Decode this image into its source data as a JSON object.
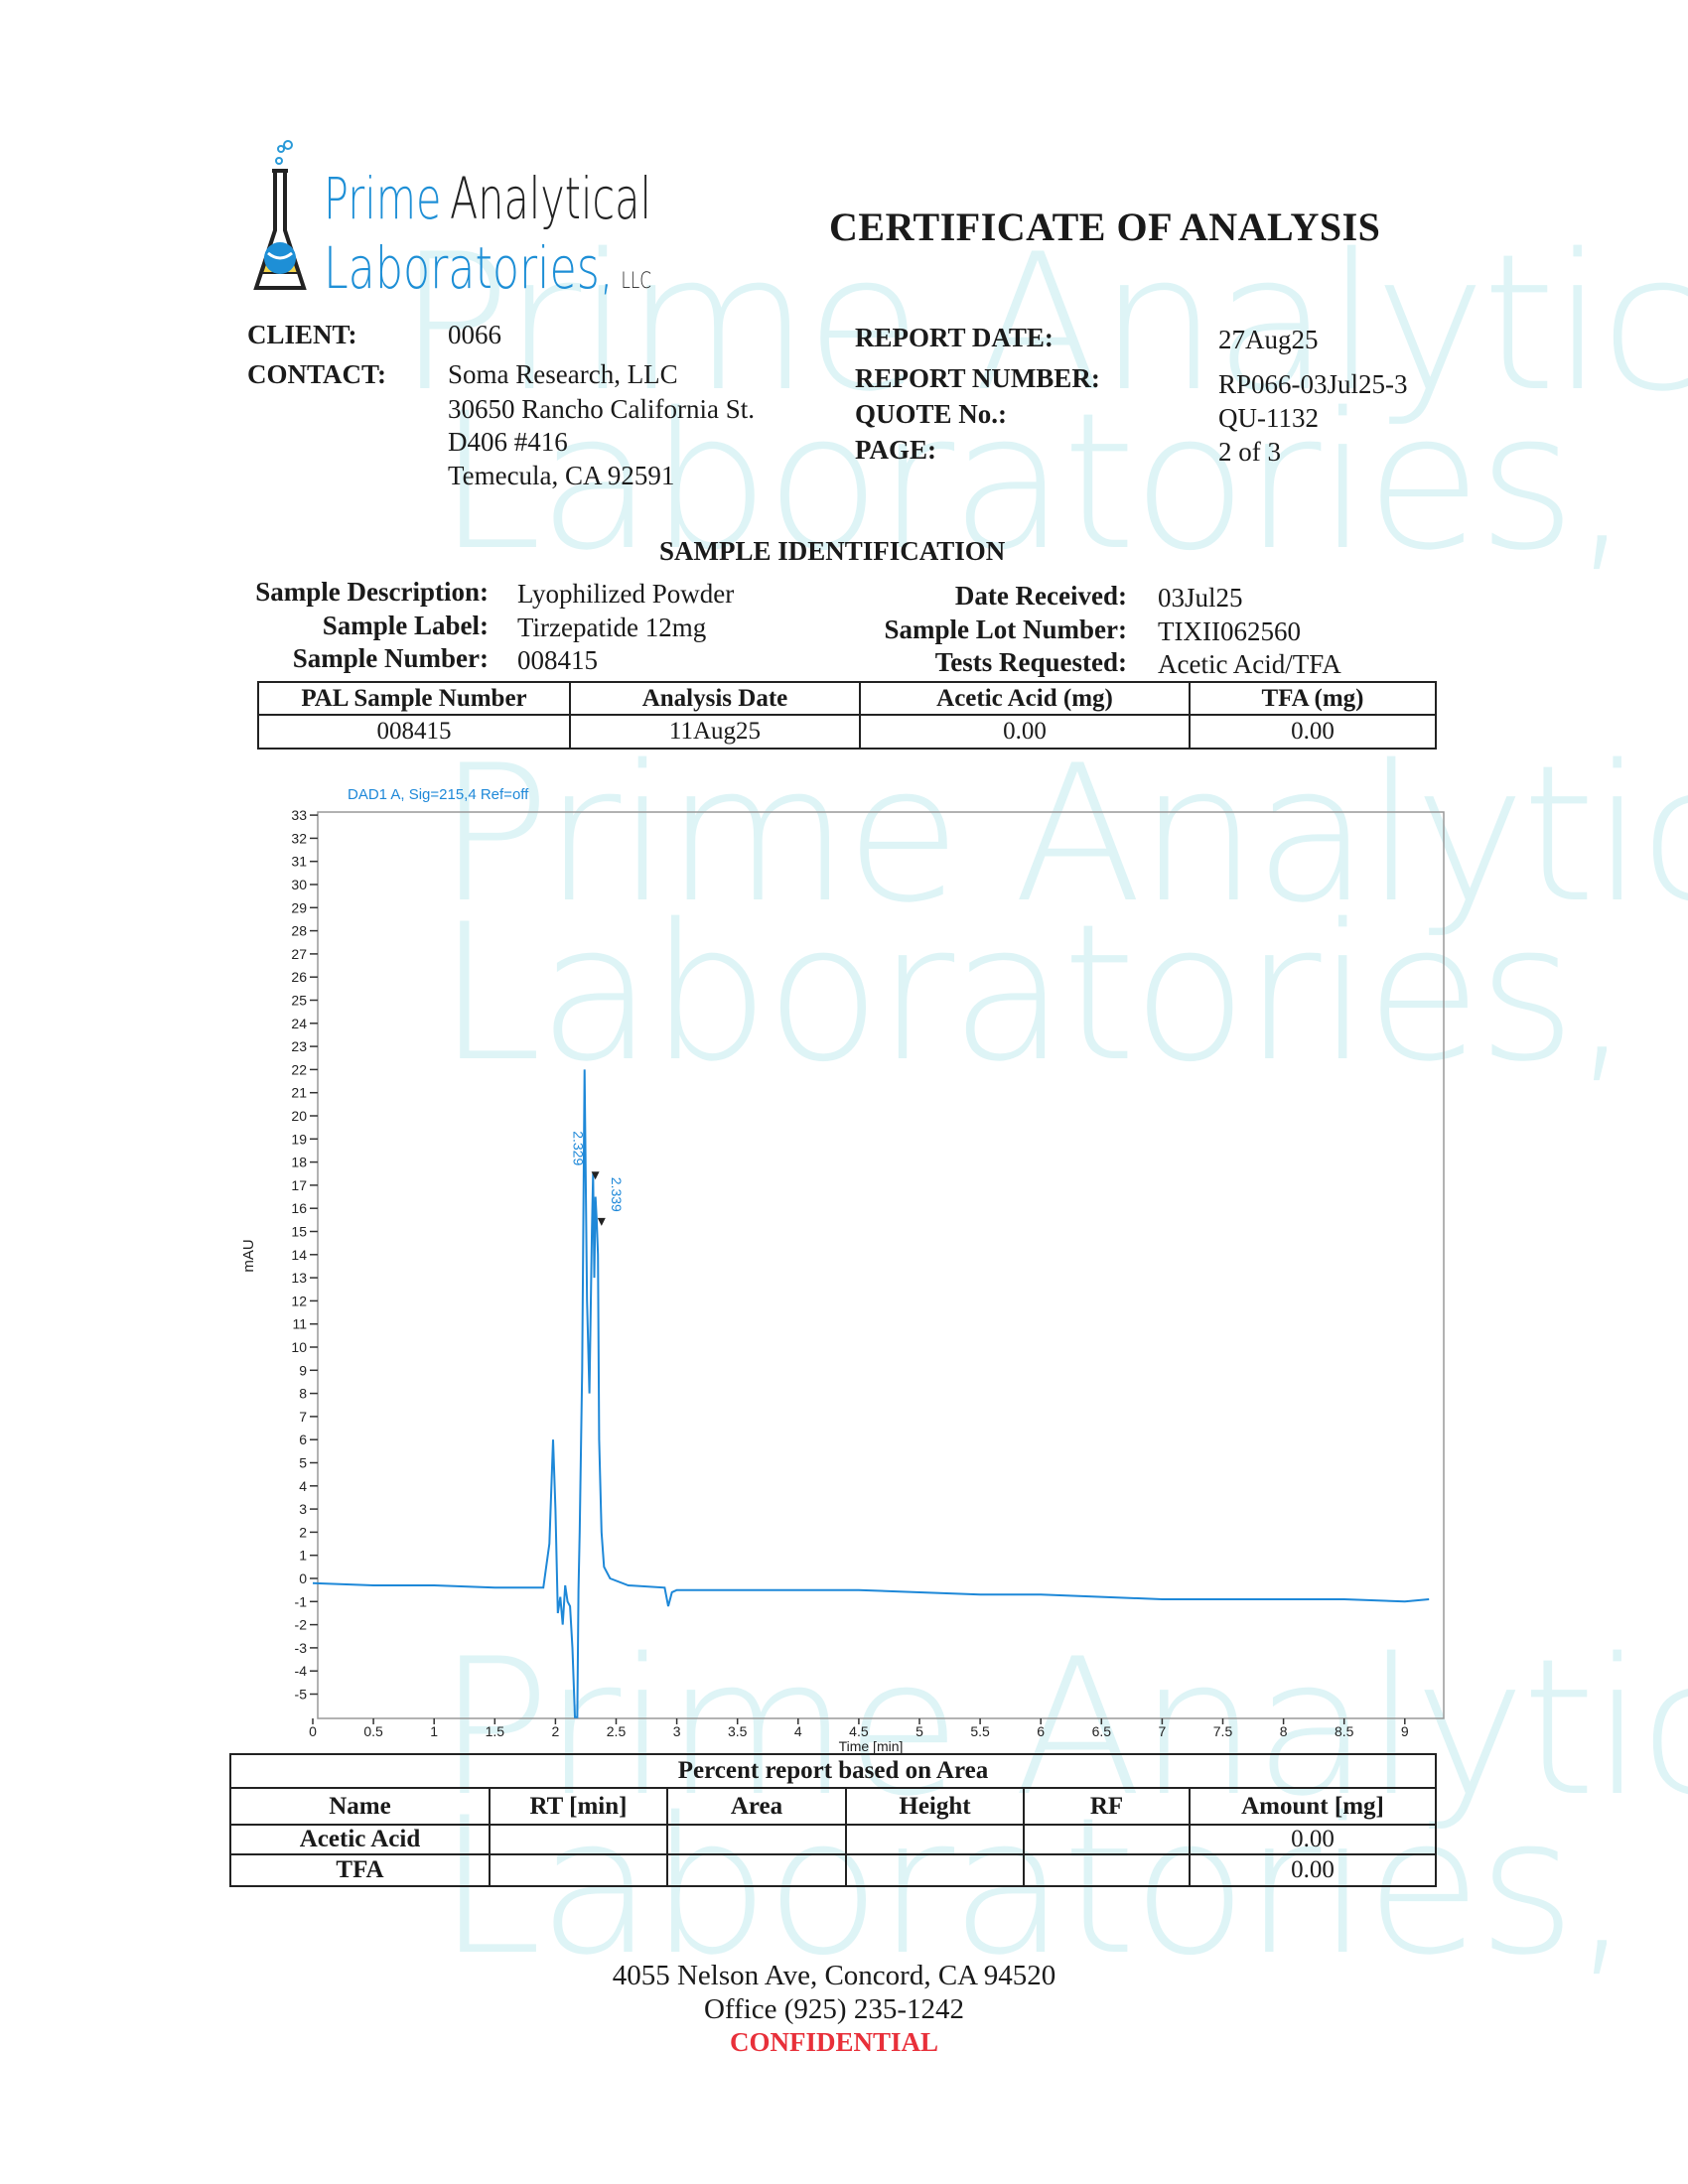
{
  "logo": {
    "line1_a": "Prime",
    "line1_b": "Analytical",
    "line2": "Laboratories,",
    "suffix": "LLC"
  },
  "watermark": {
    "line1": "Prime Analytical",
    "line2": "Laboratories, LLC"
  },
  "document_title": "CERTIFICATE OF ANALYSIS",
  "client_info": {
    "client_label": "CLIENT:",
    "client_value": "0066",
    "contact_label": "CONTACT:",
    "contact_lines": [
      "Soma Research, LLC",
      "30650 Rancho California St.",
      "D406 #416",
      "Temecula, CA 92591"
    ]
  },
  "report_info": {
    "report_date_label": "REPORT DATE:",
    "report_date": "27Aug25",
    "report_number_label": "REPORT NUMBER:",
    "report_number": "RP066-03Jul25-3",
    "quote_label": "QUOTE No.:",
    "quote": "QU-1132",
    "page_label": "PAGE:",
    "page": "2 of 3"
  },
  "sample_identification": {
    "heading": "SAMPLE IDENTIFICATION",
    "description_label": "Sample Description:",
    "description": "Lyophilized Powder",
    "label_label": "Sample Label:",
    "label": "Tirzepatide 12mg",
    "number_label": "Sample Number:",
    "number": "008415",
    "date_received_label": "Date Received:",
    "date_received": "03Jul25",
    "lot_label": "Sample Lot Number:",
    "lot": "TIXII062560",
    "tests_label": "Tests Requested:",
    "tests": "Acetic Acid/TFA"
  },
  "results_table": {
    "headers": [
      "PAL Sample Number",
      "Analysis Date",
      "Acetic Acid (mg)",
      "TFA (mg)"
    ],
    "rows": [
      [
        "008415",
        "11Aug25",
        "0.00",
        "0.00"
      ]
    ]
  },
  "chart_data": {
    "type": "line",
    "title": "DAD1 A, Sig=215,4 Ref=off",
    "xlabel": "Time [min]",
    "ylabel": "mAU",
    "xlim": [
      0,
      9.3
    ],
    "ylim": [
      -6,
      33.3
    ],
    "x_ticks": [
      "0",
      "0.5",
      "1",
      "1.5",
      "2",
      "2.5",
      "3",
      "3.5",
      "4",
      "4.5",
      "5",
      "5.5",
      "6",
      "6.5",
      "7",
      "7.5",
      "8",
      "8.5",
      "9"
    ],
    "y_ticks": [
      "33",
      "32",
      "31",
      "30",
      "29",
      "28",
      "27",
      "26",
      "25",
      "24",
      "23",
      "22",
      "21",
      "20",
      "19",
      "18",
      "17",
      "16",
      "15",
      "14",
      "13",
      "12",
      "11",
      "10",
      "9",
      "8",
      "7",
      "6",
      "5",
      "4",
      "3",
      "2",
      "1",
      "0",
      "-1",
      "-2",
      "-3",
      "-4",
      "-5"
    ],
    "grid": false,
    "line_color": "#1e88d8",
    "series": [
      {
        "x": [
          0,
          0.5,
          1,
          1.5,
          1.9,
          1.95,
          1.98,
          2.0,
          2.02,
          2.04,
          2.06,
          2.08,
          2.1,
          2.12,
          2.14,
          2.16,
          2.18,
          2.19,
          2.2,
          2.22,
          2.24,
          2.26,
          2.28,
          2.3,
          2.31,
          2.32,
          2.33,
          2.34,
          2.35,
          2.36,
          2.38,
          2.4,
          2.45,
          2.6,
          2.9,
          2.93,
          2.96,
          3.0,
          3.5,
          4,
          4.5,
          5,
          5.5,
          6,
          6.5,
          7,
          7.5,
          8,
          8.5,
          9,
          9.2
        ],
        "y": [
          -0.2,
          -0.3,
          -0.3,
          -0.4,
          -0.4,
          1.5,
          6,
          3,
          -1.5,
          -0.8,
          -2,
          -0.3,
          -1,
          -1.2,
          -3,
          -6,
          -6,
          -0.5,
          2,
          9,
          22,
          12,
          8,
          15,
          17.5,
          13,
          16.5,
          15.5,
          14,
          6,
          2,
          0.5,
          0,
          -0.3,
          -0.4,
          -1.2,
          -0.6,
          -0.5,
          -0.5,
          -0.5,
          -0.5,
          -0.6,
          -0.7,
          -0.7,
          -0.8,
          -0.9,
          -0.9,
          -0.9,
          -0.9,
          -1.0,
          -0.9
        ]
      }
    ],
    "annotations": [
      {
        "x": 2.329,
        "y": 17.5,
        "text": "2.329"
      },
      {
        "x": 2.339,
        "y": 15.5,
        "text": "2.339"
      }
    ]
  },
  "area_table": {
    "title": "Percent report based on Area",
    "headers": [
      "Name",
      "RT [min]",
      "Area",
      "Height",
      "RF",
      "Amount [mg]"
    ],
    "rows": [
      [
        "Acetic Acid",
        "",
        "",
        "",
        "",
        "0.00"
      ],
      [
        "TFA",
        "",
        "",
        "",
        "",
        "0.00"
      ]
    ]
  },
  "footer": {
    "address": "4055 Nelson Ave, Concord, CA 94520",
    "phone": "Office (925) 235-1242",
    "confidential": "CONFIDENTIAL",
    "confidential_color": "#e8303a"
  }
}
